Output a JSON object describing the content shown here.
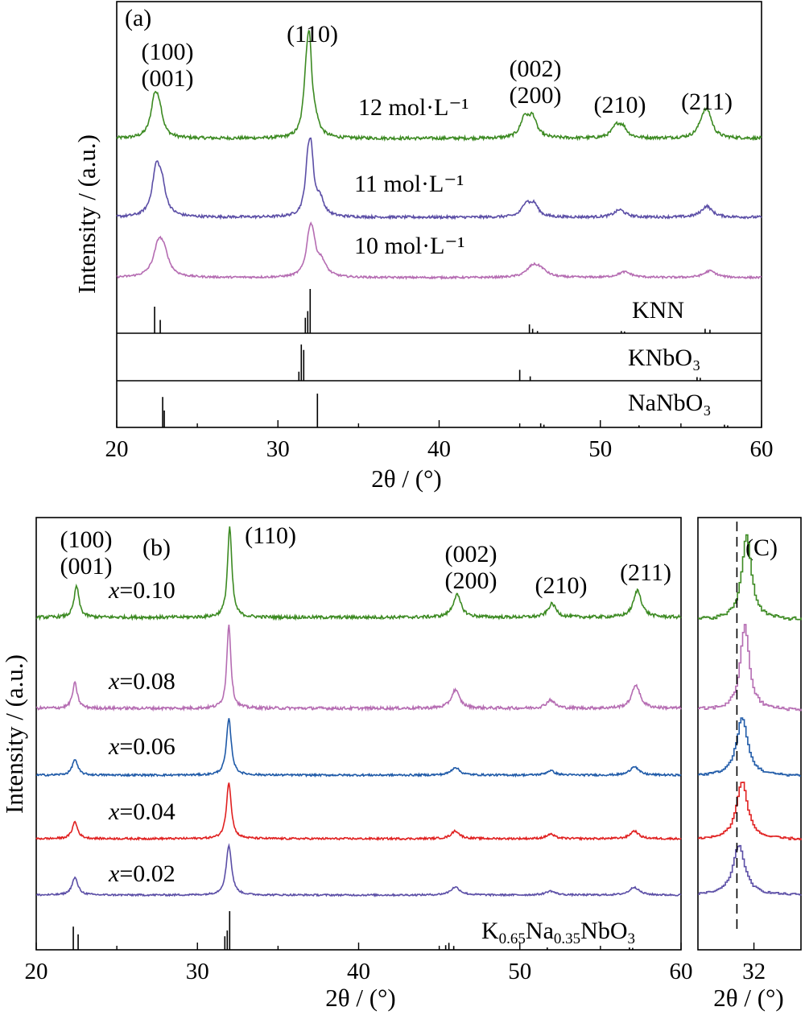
{
  "chart_data": [
    {
      "id": "a",
      "type": "line",
      "panel_label": "(a)",
      "xlabel": "2θ / (°)",
      "ylabel": "Intensity / (a.u.)",
      "xlim": [
        20,
        60
      ],
      "xticks": [
        "20",
        "30",
        "40",
        "50",
        "60"
      ],
      "peak_labels": [
        {
          "text": "(100)",
          "x": 22.4
        },
        {
          "text": "(001)",
          "x": 22.4
        },
        {
          "text": "(110)",
          "x": 31.9
        },
        {
          "text": "(002)",
          "x": 45.6
        },
        {
          "text": "(200)",
          "x": 45.6
        },
        {
          "text": "(210)",
          "x": 51.2
        },
        {
          "text": "(211)",
          "x": 56.6
        }
      ],
      "series": [
        {
          "name": "12 mol·L⁻¹",
          "color": "#3c8a22",
          "baseline": 0.0,
          "peaks": [
            [
              22.35,
              0.42,
              0.28
            ],
            [
              22.65,
              0.25,
              0.25
            ],
            [
              31.75,
              0.52,
              0.2
            ],
            [
              31.95,
              0.9,
              0.18
            ],
            [
              32.3,
              0.15,
              0.3
            ],
            [
              45.3,
              0.22,
              0.3
            ],
            [
              45.8,
              0.22,
              0.3
            ],
            [
              51.0,
              0.13,
              0.35
            ],
            [
              51.4,
              0.1,
              0.3
            ],
            [
              56.4,
              0.2,
              0.35
            ],
            [
              56.7,
              0.2,
              0.3
            ]
          ]
        },
        {
          "name": "11 mol·L⁻¹",
          "color": "#5b4ea6",
          "baseline": 0.0,
          "peaks": [
            [
              22.45,
              0.6,
              0.3
            ],
            [
              22.8,
              0.35,
              0.3
            ],
            [
              31.85,
              0.52,
              0.2
            ],
            [
              32.05,
              0.75,
              0.2
            ],
            [
              32.6,
              0.22,
              0.3
            ],
            [
              45.4,
              0.18,
              0.3
            ],
            [
              45.9,
              0.16,
              0.3
            ],
            [
              51.2,
              0.1,
              0.4
            ],
            [
              56.6,
              0.15,
              0.4
            ]
          ]
        },
        {
          "name": "10 mol·L⁻¹",
          "color": "#b56cb2",
          "baseline": 0.0,
          "peaks": [
            [
              22.6,
              0.55,
              0.38
            ],
            [
              22.95,
              0.3,
              0.35
            ],
            [
              31.95,
              0.55,
              0.25
            ],
            [
              32.15,
              0.5,
              0.25
            ],
            [
              32.7,
              0.25,
              0.35
            ],
            [
              45.8,
              0.18,
              0.45
            ],
            [
              46.3,
              0.12,
              0.45
            ],
            [
              51.5,
              0.1,
              0.5
            ],
            [
              56.8,
              0.12,
              0.45
            ]
          ]
        }
      ],
      "references": [
        {
          "name": "KNN",
          "lines": [
            [
              22.35,
              0.6
            ],
            [
              22.7,
              0.3
            ],
            [
              31.7,
              0.35
            ],
            [
              31.85,
              0.5
            ],
            [
              32.0,
              1.0
            ],
            [
              45.6,
              0.2
            ],
            [
              45.8,
              0.1
            ],
            [
              46.1,
              0.05
            ],
            [
              51.3,
              0.05
            ],
            [
              51.5,
              0.04
            ],
            [
              56.5,
              0.1
            ],
            [
              56.8,
              0.08
            ]
          ]
        },
        {
          "name": "KNbO₃",
          "lines": [
            [
              31.3,
              0.25
            ],
            [
              31.45,
              1.0
            ],
            [
              31.6,
              0.85
            ],
            [
              45.0,
              0.3
            ],
            [
              45.65,
              0.12
            ],
            [
              56.0,
              0.1
            ],
            [
              56.2,
              0.08
            ]
          ]
        },
        {
          "name": "NaNbO₃",
          "lines": [
            [
              22.85,
              0.9
            ],
            [
              22.95,
              0.5
            ],
            [
              32.45,
              1.0
            ],
            [
              46.3,
              0.12
            ],
            [
              46.5,
              0.08
            ],
            [
              52.4,
              0.06
            ],
            [
              57.7,
              0.08
            ],
            [
              57.9,
              0.06
            ]
          ]
        }
      ]
    },
    {
      "id": "b",
      "type": "line",
      "panel_label": "(b)",
      "xlabel": "2θ / (°)",
      "ylabel": "Intensity / (a.u.)",
      "xlim": [
        20,
        60
      ],
      "xticks": [
        "20",
        "30",
        "40",
        "50",
        "60"
      ],
      "peak_labels": [
        {
          "text": "(100)",
          "x": 22.4
        },
        {
          "text": "(001)",
          "x": 22.4
        },
        {
          "text": "(110)",
          "x": 31.9
        },
        {
          "text": "(002)",
          "x": 46.0
        },
        {
          "text": "(200)",
          "x": 46.0
        },
        {
          "text": "(210)",
          "x": 51.9
        },
        {
          "text": "(211)",
          "x": 57.1
        }
      ],
      "series": [
        {
          "name": "x=0.10",
          "x_symbol": "x",
          "x_value": "=0.10",
          "color": "#3c8a22",
          "peaks": [
            [
              22.5,
              0.35,
              0.18
            ],
            [
              32.0,
              1.0,
              0.16
            ],
            [
              46.1,
              0.25,
              0.3
            ],
            [
              52.0,
              0.15,
              0.3
            ],
            [
              57.3,
              0.3,
              0.3
            ]
          ]
        },
        {
          "name": "x=0.08",
          "x_symbol": "x",
          "x_value": "=0.08",
          "color": "#b56cb2",
          "peaks": [
            [
              22.4,
              0.3,
              0.18
            ],
            [
              31.95,
              1.0,
              0.15
            ],
            [
              46.0,
              0.22,
              0.3
            ],
            [
              51.9,
              0.1,
              0.3
            ],
            [
              57.2,
              0.28,
              0.3
            ]
          ]
        },
        {
          "name": "x=0.06",
          "x_symbol": "x",
          "x_value": "=0.06",
          "color": "#1f5aa8",
          "peaks": [
            [
              22.4,
              0.28,
              0.2
            ],
            [
              31.95,
              1.0,
              0.18
            ],
            [
              46.0,
              0.14,
              0.3
            ],
            [
              51.9,
              0.08,
              0.3
            ],
            [
              57.1,
              0.16,
              0.3
            ]
          ]
        },
        {
          "name": "x=0.04",
          "x_symbol": "x",
          "x_value": "=0.04",
          "color": "#e02020",
          "peaks": [
            [
              22.4,
              0.3,
              0.2
            ],
            [
              31.95,
              1.0,
              0.18
            ],
            [
              46.0,
              0.14,
              0.3
            ],
            [
              51.9,
              0.08,
              0.3
            ],
            [
              57.1,
              0.14,
              0.3
            ]
          ]
        },
        {
          "name": "x=0.02",
          "x_symbol": "x",
          "x_value": "=0.02",
          "color": "#5b4ea6",
          "peaks": [
            [
              22.4,
              0.35,
              0.22
            ],
            [
              31.95,
              1.0,
              0.2
            ],
            [
              46.0,
              0.16,
              0.35
            ],
            [
              51.9,
              0.08,
              0.35
            ],
            [
              57.1,
              0.16,
              0.35
            ]
          ]
        }
      ],
      "references": [
        {
          "name": "K0.65Na0.35NbO3",
          "lines": [
            [
              22.3,
              0.6
            ],
            [
              22.6,
              0.4
            ],
            [
              31.7,
              0.35
            ],
            [
              31.85,
              0.5
            ],
            [
              32.0,
              1.0
            ],
            [
              45.4,
              0.12
            ],
            [
              45.6,
              0.18
            ],
            [
              45.9,
              0.1
            ],
            [
              51.7,
              0.06
            ],
            [
              56.8,
              0.06
            ],
            [
              57.0,
              0.05
            ]
          ]
        }
      ]
    },
    {
      "id": "c",
      "type": "line",
      "panel_label": "(C)",
      "xlabel": "2θ / (°)",
      "xlim": [
        30.75,
        33.05
      ],
      "xticks": [
        "32"
      ],
      "dashed_reference_x": 31.62,
      "series": [
        {
          "name": "x=0.10",
          "color": "#3c8a22",
          "center": 31.82,
          "width": 0.13
        },
        {
          "name": "x=0.08",
          "color": "#b56cb2",
          "center": 31.78,
          "width": 0.12
        },
        {
          "name": "x=0.06",
          "color": "#1f5aa8",
          "center": 31.72,
          "width": 0.15
        },
        {
          "name": "x=0.04",
          "color": "#e02020",
          "center": 31.72,
          "width": 0.15
        },
        {
          "name": "x=0.02",
          "color": "#5b4ea6",
          "center": 31.65,
          "width": 0.16
        }
      ]
    }
  ]
}
